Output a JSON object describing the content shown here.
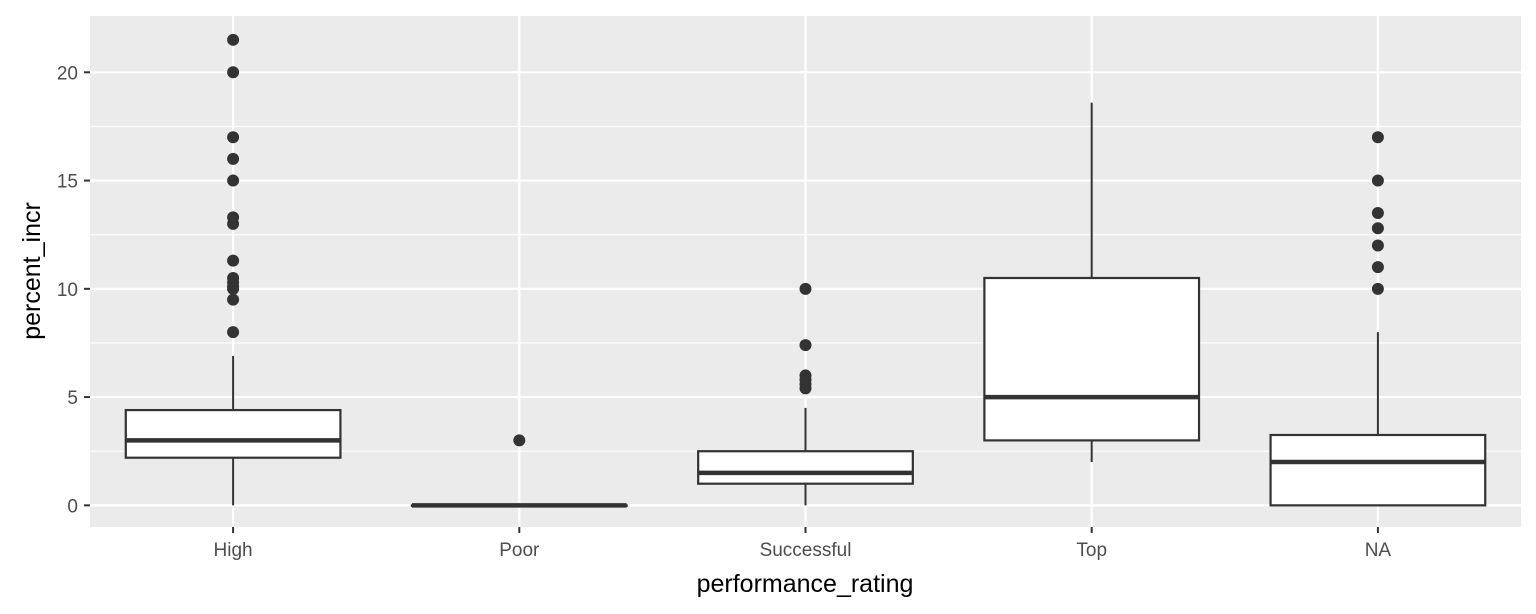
{
  "chart_data": {
    "type": "box",
    "xlabel": "performance_rating",
    "ylabel": "percent_incr",
    "categories": [
      "High",
      "Poor",
      "Successful",
      "Top",
      "NA"
    ],
    "ylim": [
      -1,
      22.6
    ],
    "yticks": [
      0,
      5,
      10,
      15,
      20
    ],
    "grid": true,
    "legend": "none",
    "colors": {
      "panel": "#ebebeb",
      "grid": "#ffffff",
      "box_line": "#333333",
      "box_fill": "#ffffff",
      "outlier": "#333333"
    },
    "boxes": [
      {
        "category": "High",
        "whisker_low": 0,
        "q1": 2.2,
        "median": 3,
        "q3": 4.4,
        "whisker_high": 6.9,
        "outliers": [
          8,
          9.5,
          10,
          10.1,
          10.3,
          10.5,
          11.3,
          13,
          13.3,
          15,
          16,
          17,
          20,
          21.5
        ]
      },
      {
        "category": "Poor",
        "whisker_low": 0,
        "q1": 0,
        "median": 0,
        "q3": 0,
        "whisker_high": 0,
        "outliers": [
          3
        ]
      },
      {
        "category": "Successful",
        "whisker_low": 0,
        "q1": 1,
        "median": 1.5,
        "q3": 2.5,
        "whisker_high": 4.5,
        "outliers": [
          5.4,
          5.6,
          5.8,
          6,
          7.4,
          10
        ]
      },
      {
        "category": "Top",
        "whisker_low": 2,
        "q1": 3,
        "median": 5,
        "q3": 10.5,
        "whisker_high": 18.6,
        "outliers": []
      },
      {
        "category": "NA",
        "whisker_low": 0,
        "q1": 0,
        "median": 2,
        "q3": 3.25,
        "whisker_high": 8,
        "outliers": [
          10,
          11,
          12,
          12.8,
          13.5,
          15,
          17
        ]
      }
    ]
  }
}
